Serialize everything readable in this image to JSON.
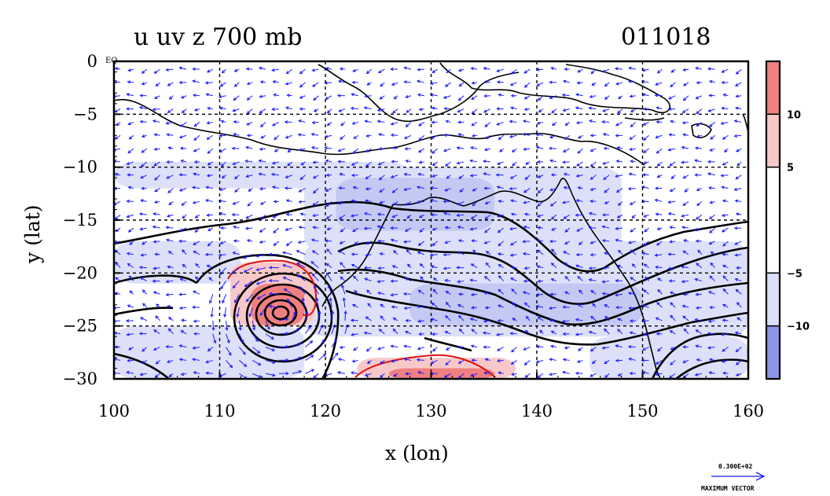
{
  "chart_data": {
    "type": "heatmap",
    "title_left": "u uv z 700 mb",
    "title_right": "011018",
    "xlabel": "x (lon)",
    "ylabel": "y (lat)",
    "xlim": [
      100,
      160
    ],
    "ylim": [
      -30,
      0
    ],
    "x_ticks": [
      "100",
      "110",
      "120",
      "130",
      "140",
      "150",
      "160"
    ],
    "y_ticks": [
      "0",
      "−5",
      "−10",
      "−15",
      "−20",
      "−25",
      "−30"
    ],
    "x_tick_values": [
      100,
      110,
      120,
      130,
      140,
      150,
      160
    ],
    "y_tick_values": [
      0,
      -5,
      -10,
      -15,
      -20,
      -25,
      -30
    ],
    "equator_label": "EQ",
    "grid": true,
    "colorbar": {
      "labels": [
        "10",
        "5",
        "−5",
        "−10"
      ],
      "label_values": [
        10,
        5,
        -5,
        -10
      ],
      "range": [
        -15,
        15
      ],
      "bands": [
        {
          "from": 10,
          "to": 15,
          "color": "#f08080"
        },
        {
          "from": 5,
          "to": 10,
          "color": "#f8c8c8"
        },
        {
          "from": -5,
          "to": 5,
          "color": "#ffffff"
        },
        {
          "from": -10,
          "to": -5,
          "color": "#dde0f8"
        },
        {
          "from": -15,
          "to": -10,
          "color": "#8c94e8"
        }
      ]
    },
    "vector_legend": {
      "value": "0.300E+02",
      "label": "MAXIMUM VECTOR"
    },
    "negative_u_regions": [
      {
        "lon": [
          100,
          128
        ],
        "lat": [
          -9.5,
          -12
        ]
      },
      {
        "lon": [
          118,
          148
        ],
        "lat": [
          -10,
          -18
        ]
      },
      {
        "lon": [
          118,
          160
        ],
        "lat": [
          -17,
          -26
        ]
      },
      {
        "lon": [
          100,
          118
        ],
        "lat": [
          -25,
          -30
        ]
      },
      {
        "lon": [
          145,
          160
        ],
        "lat": [
          -26,
          -30
        ]
      },
      {
        "lon": [
          100,
          112
        ],
        "lat": [
          -17,
          -21
        ]
      }
    ],
    "strong_negative_regions": [
      {
        "lon": [
          121,
          136
        ],
        "lat": [
          -11,
          -16
        ]
      },
      {
        "lon": [
          128,
          150
        ],
        "lat": [
          -21,
          -25
        ]
      }
    ],
    "positive_u_regions": [
      {
        "lon": [
          111,
          119
        ],
        "lat": [
          -19,
          -25
        ],
        "level": "5 to 10"
      },
      {
        "lon": [
          113,
          118
        ],
        "lat": [
          -21,
          -25
        ],
        "level": "10 to 15"
      },
      {
        "lon": [
          123,
          138
        ],
        "lat": [
          -28,
          -30
        ],
        "level": "5 to 10"
      },
      {
        "lon": [
          126,
          136
        ],
        "lat": [
          -29,
          -30
        ],
        "level": "10 to 15"
      }
    ],
    "cyclone_center": {
      "lon": 115.5,
      "lat": -24
    },
    "contour_color": "#000000",
    "positive_contour_color": "#e01010",
    "vector_color": "#1a1aff"
  }
}
